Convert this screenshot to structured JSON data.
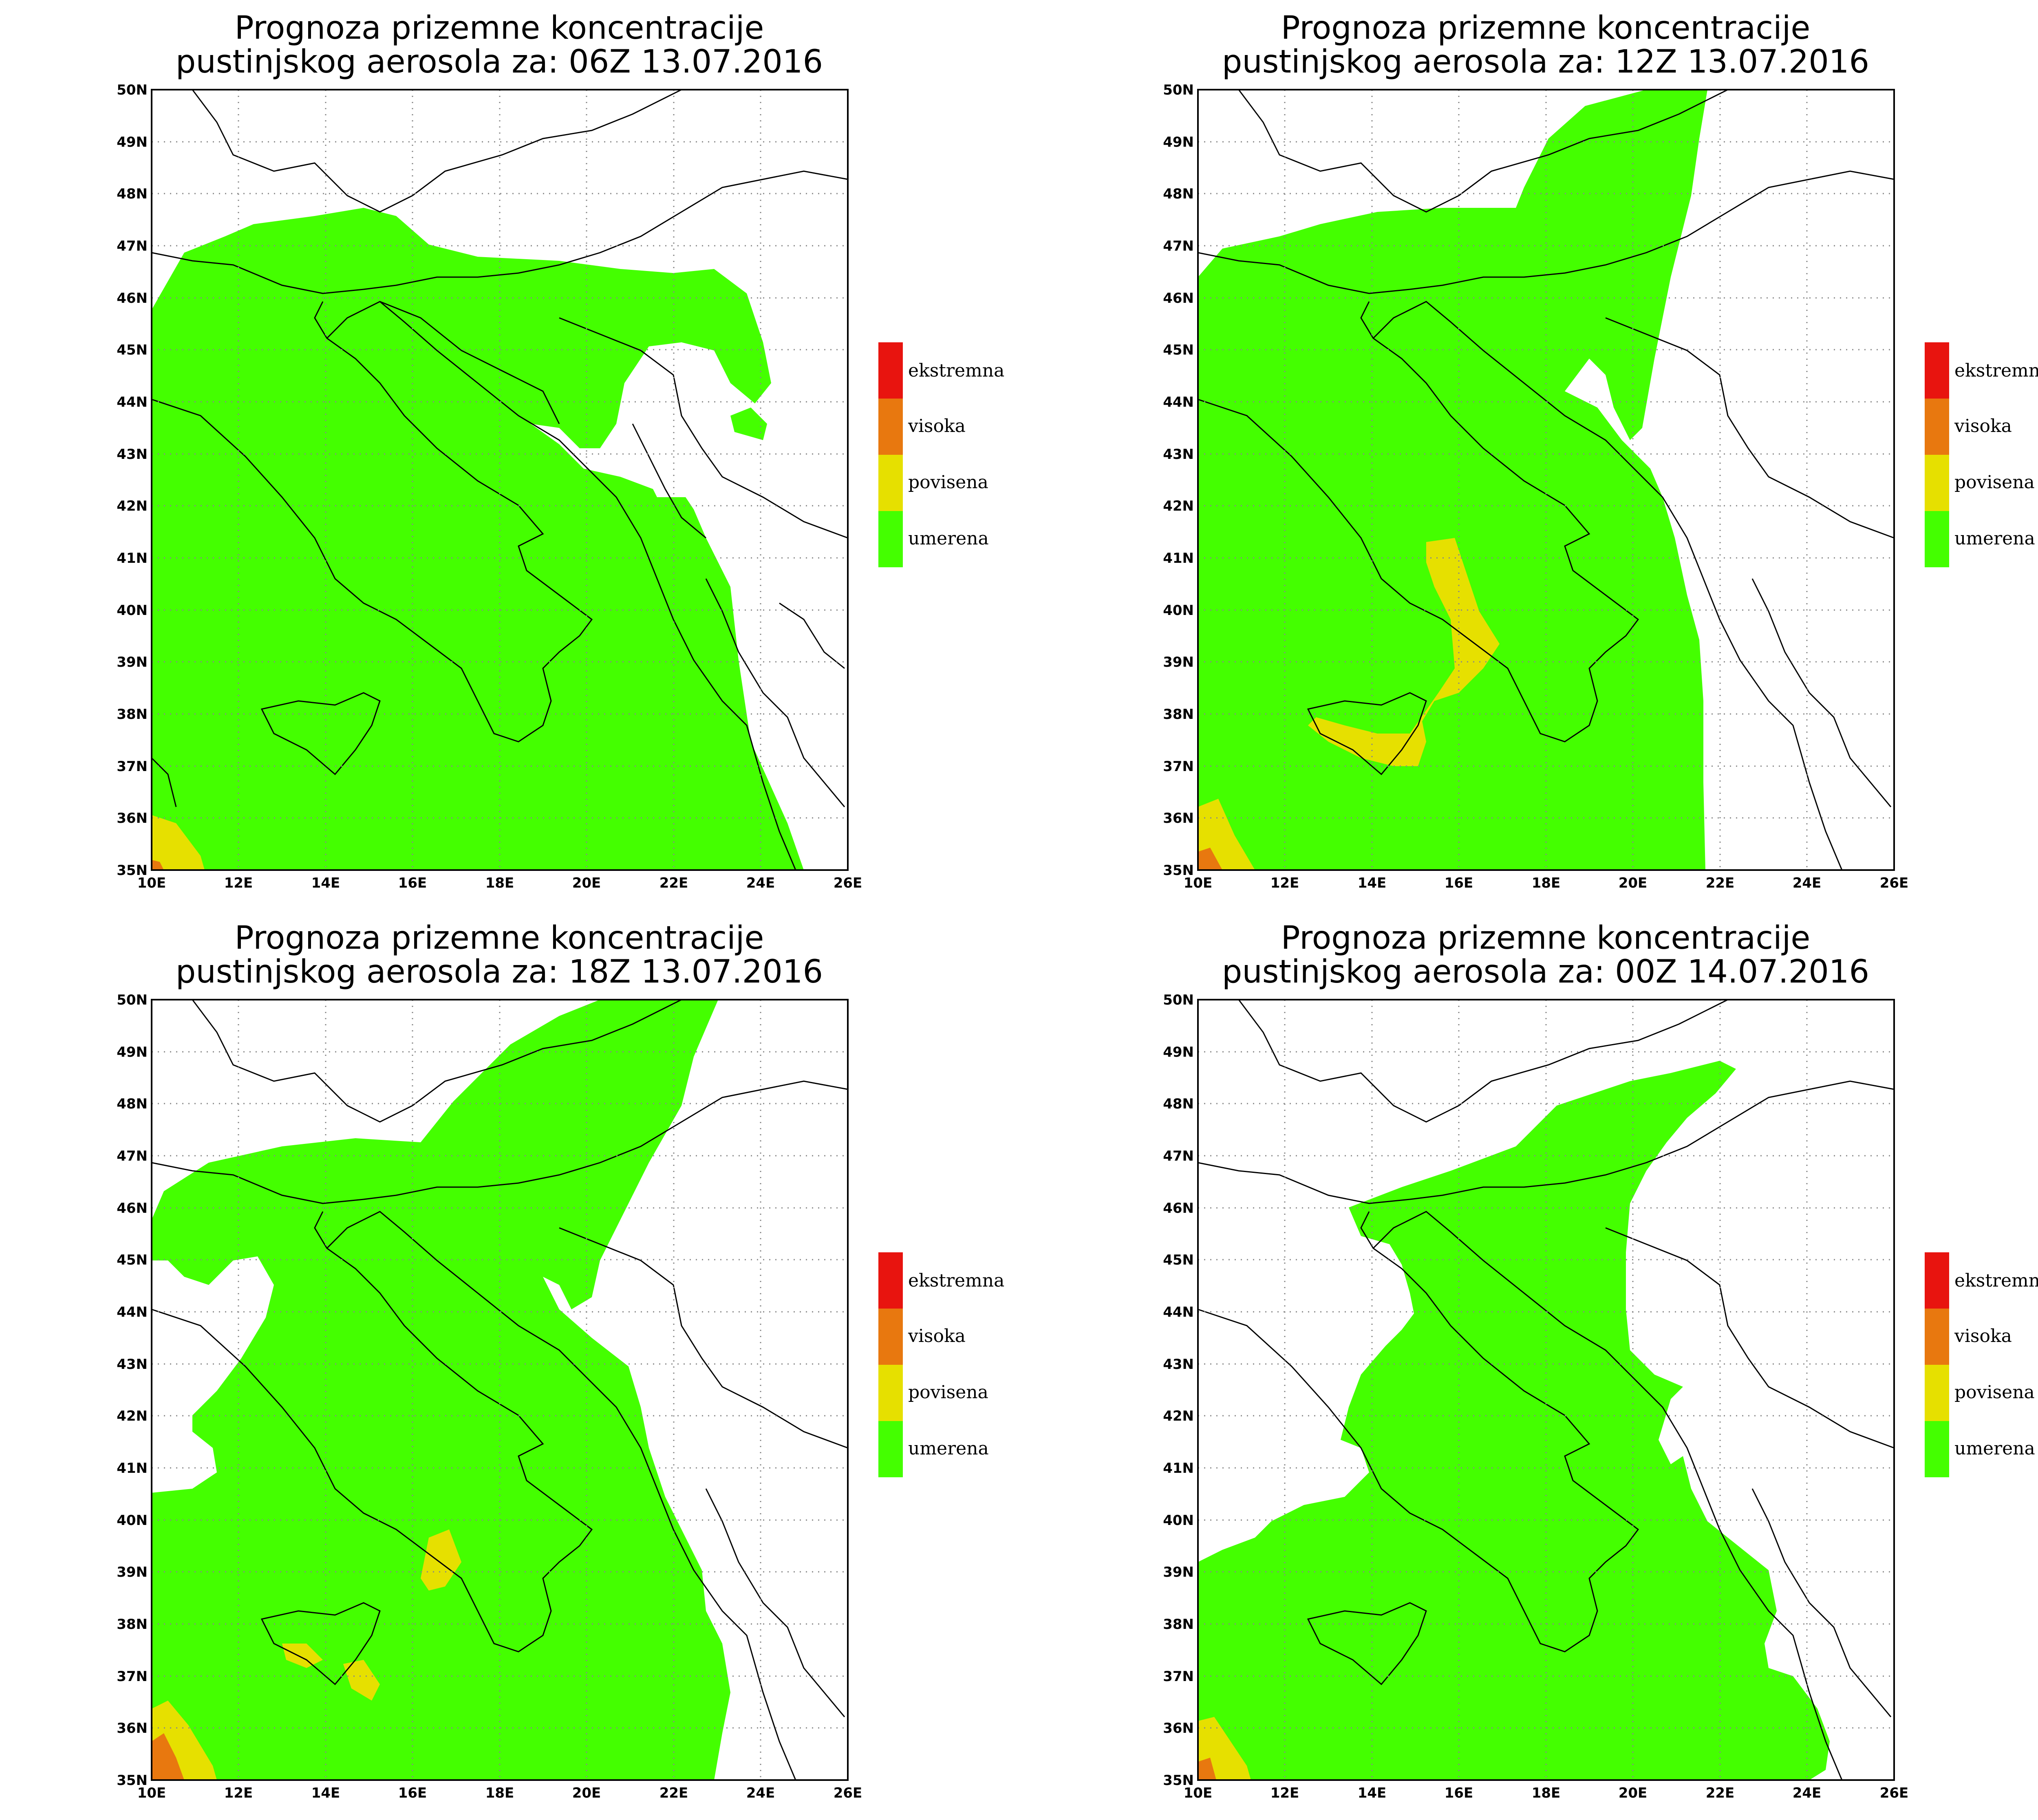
{
  "panels": [
    {
      "title_line1": "Prognoza prizemne koncentracije",
      "title_line2": "pustinjskog aerosola za: 06Z 13.07.2016"
    },
    {
      "title_line1": "Prognoza prizemne koncentracije",
      "title_line2": "pustinjskog aerosola za: 12Z 13.07.2016"
    },
    {
      "title_line1": "Prognoza prizemne koncentracije",
      "title_line2": "pustinjskog aerosola za: 18Z 13.07.2016"
    },
    {
      "title_line1": "Prognoza prizemne koncentracije",
      "title_line2": "pustinjskog aerosola za: 00Z 14.07.2016"
    }
  ],
  "axes": {
    "lat_labels": [
      "35N",
      "36N",
      "37N",
      "38N",
      "39N",
      "40N",
      "41N",
      "42N",
      "43N",
      "44N",
      "45N",
      "46N",
      "47N",
      "48N",
      "49N",
      "50N"
    ],
    "lon_labels": [
      "10E",
      "12E",
      "14E",
      "16E",
      "18E",
      "20E",
      "22E",
      "24E",
      "26E"
    ],
    "lat_range": [
      35,
      50
    ],
    "lon_range": [
      10,
      26
    ]
  },
  "legend": [
    {
      "label": "ekstremna",
      "color": "#e8140f"
    },
    {
      "label": "visoka",
      "color": "#e8780f"
    },
    {
      "label": "povisena",
      "color": "#e6e000"
    },
    {
      "label": "umerena",
      "color": "#44ff00"
    }
  ]
}
